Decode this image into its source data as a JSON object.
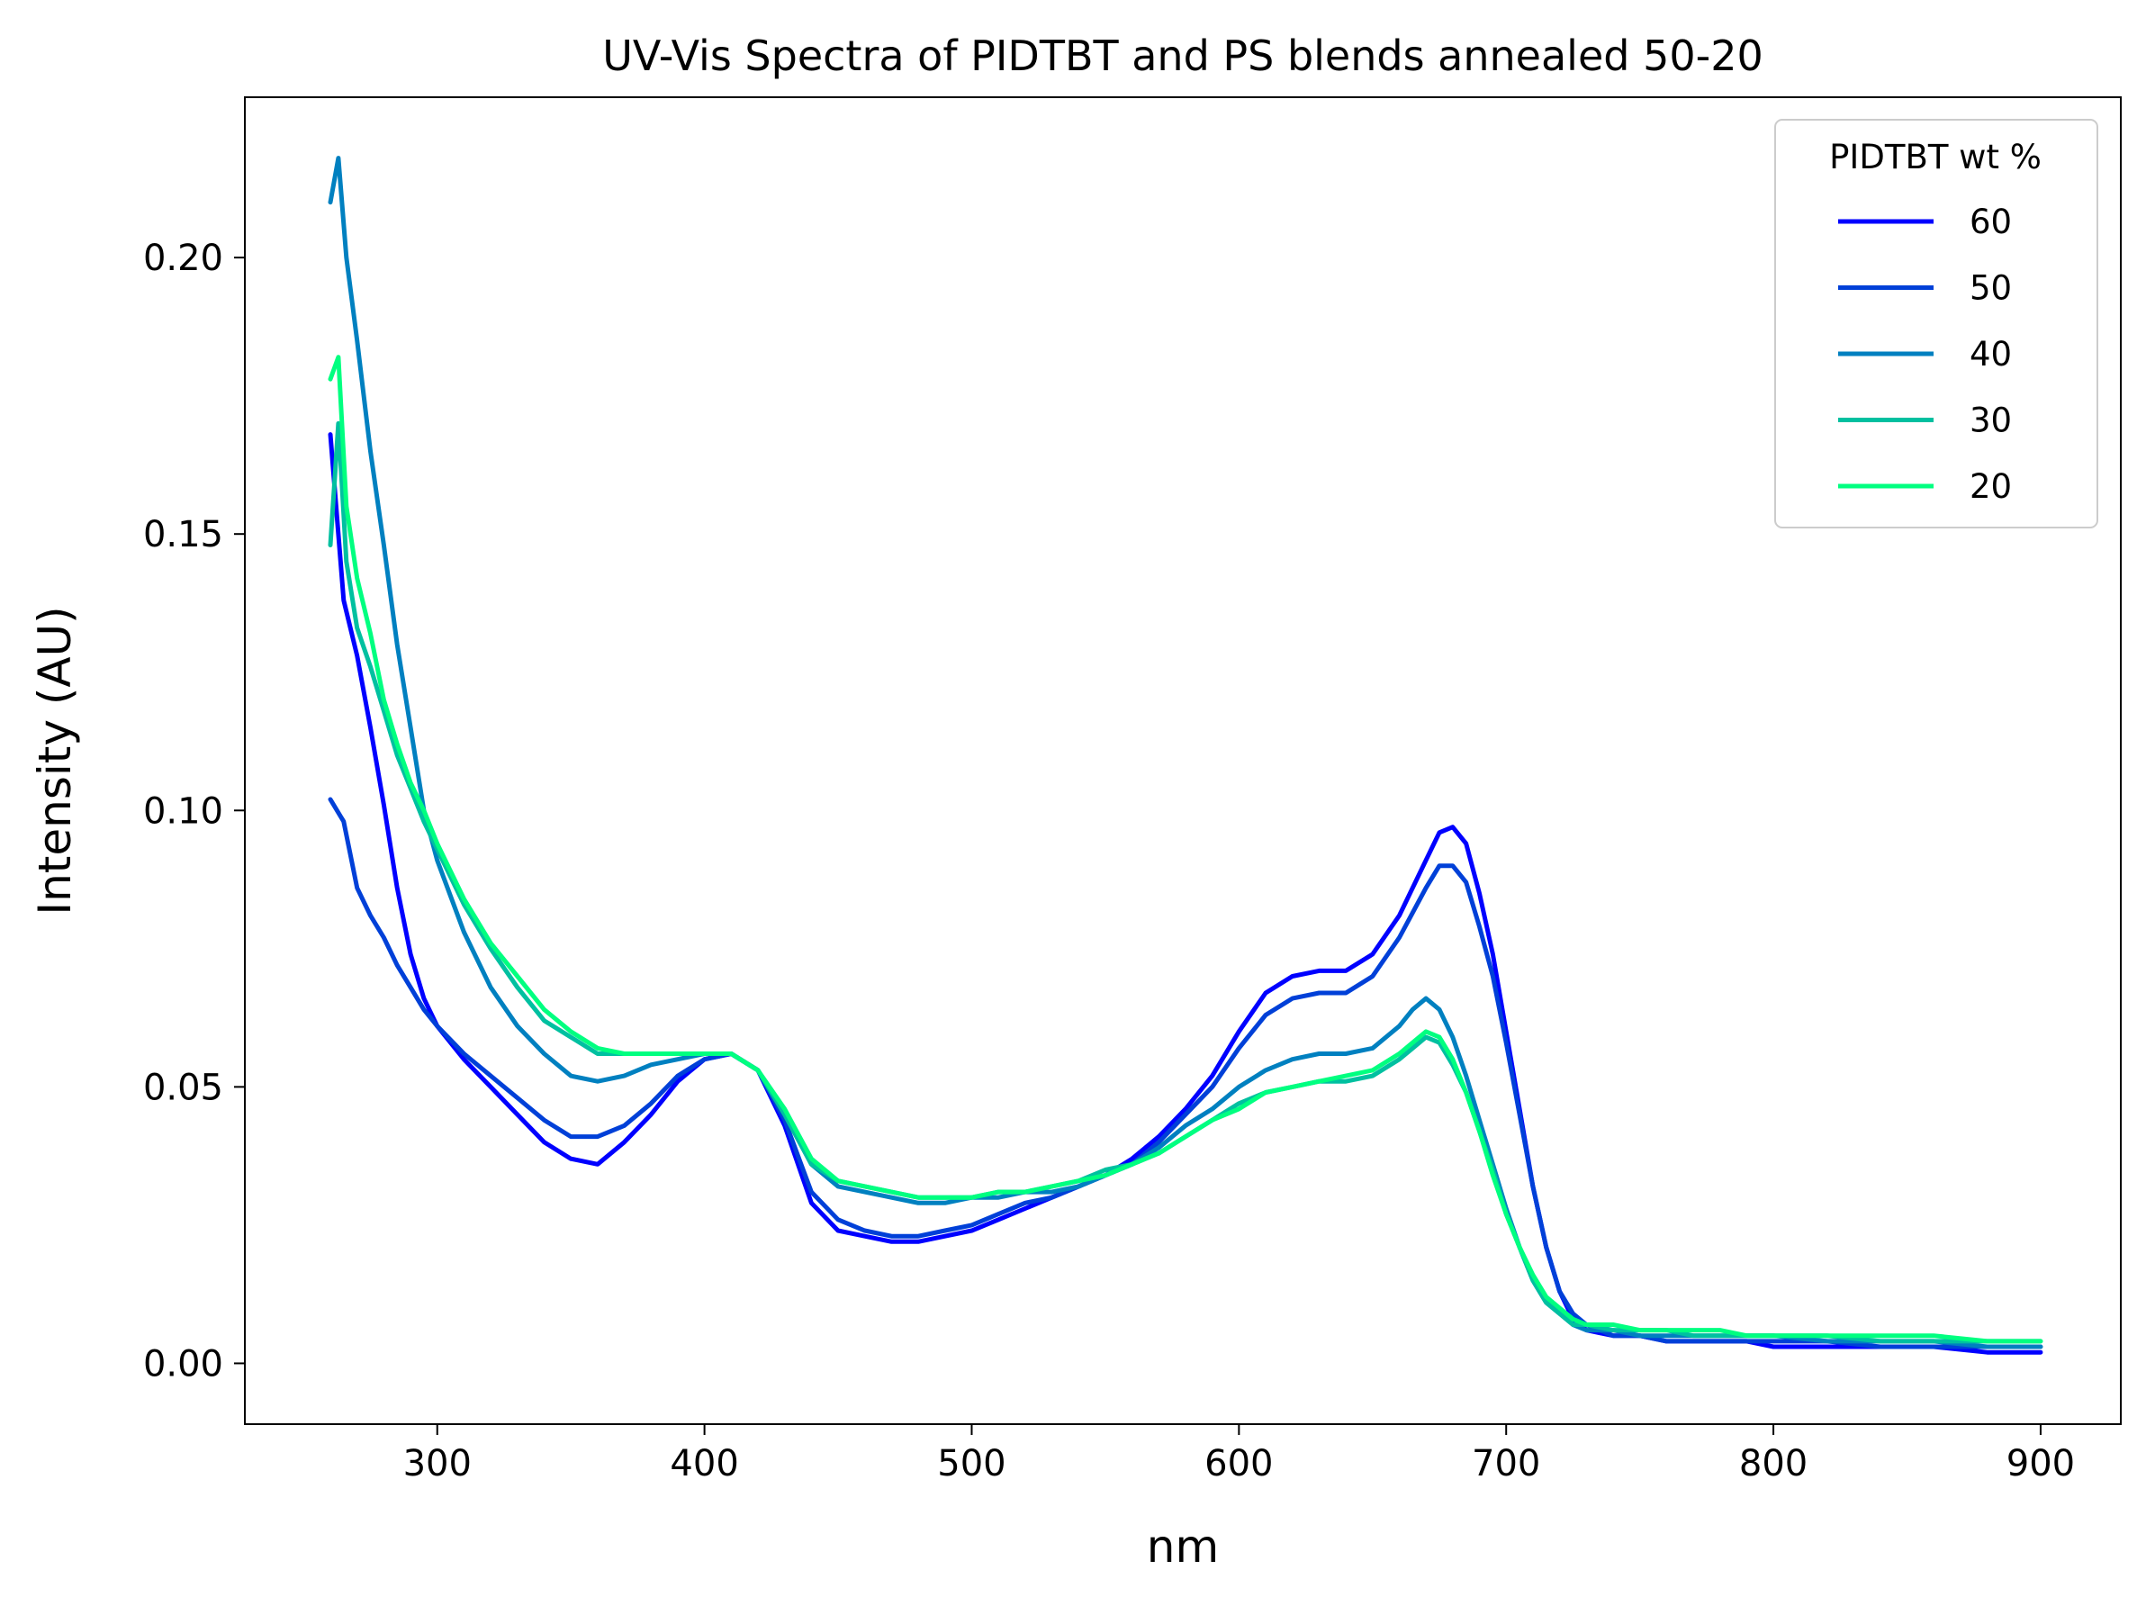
{
  "chart_data": {
    "type": "line",
    "title": "UV-Vis Spectra of PIDTBT and PS blends annealed 50-20",
    "xlabel": "nm",
    "ylabel": "Intensity (AU)",
    "xlim": [
      228,
      930
    ],
    "ylim": [
      -0.011,
      0.229
    ],
    "x_ticks": [
      300,
      400,
      500,
      600,
      700,
      800,
      900
    ],
    "y_ticks": [
      0.0,
      0.05,
      0.1,
      0.15,
      0.2
    ],
    "x_tick_labels": [
      "300",
      "400",
      "500",
      "600",
      "700",
      "800",
      "900"
    ],
    "y_tick_labels": [
      "0.00",
      "0.05",
      "0.10",
      "0.15",
      "0.20"
    ],
    "grid": false,
    "legend": {
      "title": "PIDTBT wt %",
      "position": "top-right"
    },
    "series": [
      {
        "name": "60",
        "color": "#0000ff",
        "x": [
          260,
          265,
          270,
          275,
          280,
          285,
          290,
          295,
          300,
          310,
          320,
          330,
          340,
          350,
          360,
          370,
          380,
          390,
          400,
          410,
          420,
          430,
          440,
          450,
          460,
          470,
          480,
          490,
          500,
          510,
          520,
          530,
          540,
          550,
          560,
          570,
          580,
          590,
          600,
          610,
          620,
          630,
          640,
          650,
          660,
          670,
          675,
          680,
          685,
          690,
          695,
          700,
          705,
          710,
          715,
          720,
          725,
          730,
          740,
          750,
          760,
          770,
          780,
          790,
          800,
          820,
          840,
          860,
          880,
          900
        ],
        "y": [
          0.168,
          0.138,
          0.128,
          0.115,
          0.101,
          0.086,
          0.074,
          0.066,
          0.061,
          0.055,
          0.05,
          0.045,
          0.04,
          0.037,
          0.036,
          0.04,
          0.045,
          0.051,
          0.055,
          0.056,
          0.053,
          0.043,
          0.029,
          0.024,
          0.023,
          0.022,
          0.022,
          0.023,
          0.024,
          0.026,
          0.028,
          0.03,
          0.032,
          0.034,
          0.037,
          0.041,
          0.046,
          0.052,
          0.06,
          0.067,
          0.07,
          0.071,
          0.071,
          0.074,
          0.081,
          0.091,
          0.096,
          0.097,
          0.094,
          0.085,
          0.074,
          0.06,
          0.046,
          0.032,
          0.021,
          0.013,
          0.008,
          0.006,
          0.005,
          0.005,
          0.004,
          0.004,
          0.004,
          0.004,
          0.003,
          0.003,
          0.003,
          0.003,
          0.002,
          0.002
        ]
      },
      {
        "name": "50",
        "color": "#0040d8",
        "x": [
          260,
          265,
          270,
          275,
          280,
          285,
          290,
          295,
          300,
          310,
          320,
          330,
          340,
          350,
          360,
          370,
          380,
          390,
          400,
          410,
          420,
          430,
          440,
          450,
          460,
          470,
          480,
          490,
          500,
          510,
          520,
          530,
          540,
          550,
          560,
          570,
          580,
          590,
          600,
          610,
          620,
          630,
          640,
          650,
          660,
          670,
          675,
          680,
          685,
          690,
          695,
          700,
          705,
          710,
          715,
          720,
          725,
          730,
          740,
          750,
          760,
          770,
          780,
          790,
          800,
          820,
          840,
          860,
          880,
          900
        ],
        "y": [
          0.102,
          0.098,
          0.086,
          0.081,
          0.077,
          0.072,
          0.068,
          0.064,
          0.061,
          0.056,
          0.052,
          0.048,
          0.044,
          0.041,
          0.041,
          0.043,
          0.047,
          0.052,
          0.055,
          0.056,
          0.053,
          0.044,
          0.031,
          0.026,
          0.024,
          0.023,
          0.023,
          0.024,
          0.025,
          0.027,
          0.029,
          0.03,
          0.032,
          0.034,
          0.036,
          0.04,
          0.045,
          0.05,
          0.057,
          0.063,
          0.066,
          0.067,
          0.067,
          0.07,
          0.077,
          0.086,
          0.09,
          0.09,
          0.087,
          0.079,
          0.07,
          0.058,
          0.045,
          0.032,
          0.021,
          0.013,
          0.009,
          0.007,
          0.005,
          0.005,
          0.004,
          0.004,
          0.004,
          0.004,
          0.004,
          0.004,
          0.003,
          0.003,
          0.003,
          0.003
        ]
      },
      {
        "name": "40",
        "color": "#0080c0",
        "x": [
          260,
          263,
          266,
          270,
          275,
          280,
          285,
          290,
          295,
          300,
          310,
          320,
          330,
          340,
          350,
          360,
          370,
          380,
          390,
          400,
          410,
          420,
          430,
          440,
          450,
          460,
          470,
          480,
          490,
          500,
          510,
          520,
          530,
          540,
          550,
          560,
          570,
          580,
          590,
          600,
          610,
          620,
          630,
          640,
          650,
          660,
          665,
          670,
          675,
          680,
          685,
          690,
          695,
          700,
          705,
          710,
          715,
          720,
          725,
          730,
          740,
          750,
          760,
          770,
          780,
          790,
          800,
          820,
          840,
          860,
          880,
          900
        ],
        "y": [
          0.21,
          0.218,
          0.2,
          0.185,
          0.165,
          0.148,
          0.13,
          0.115,
          0.1,
          0.091,
          0.078,
          0.068,
          0.061,
          0.056,
          0.052,
          0.051,
          0.052,
          0.054,
          0.055,
          0.056,
          0.056,
          0.053,
          0.045,
          0.036,
          0.032,
          0.031,
          0.03,
          0.029,
          0.029,
          0.03,
          0.03,
          0.031,
          0.031,
          0.032,
          0.034,
          0.036,
          0.039,
          0.043,
          0.046,
          0.05,
          0.053,
          0.055,
          0.056,
          0.056,
          0.057,
          0.061,
          0.064,
          0.066,
          0.064,
          0.059,
          0.052,
          0.044,
          0.036,
          0.028,
          0.021,
          0.015,
          0.011,
          0.009,
          0.007,
          0.006,
          0.006,
          0.005,
          0.005,
          0.005,
          0.005,
          0.005,
          0.005,
          0.004,
          0.004,
          0.004,
          0.003,
          0.003
        ]
      },
      {
        "name": "30",
        "color": "#00c0a0",
        "x": [
          260,
          263,
          266,
          270,
          275,
          280,
          285,
          290,
          295,
          300,
          310,
          320,
          330,
          340,
          350,
          360,
          370,
          380,
          390,
          400,
          410,
          420,
          430,
          440,
          450,
          460,
          470,
          480,
          490,
          500,
          510,
          520,
          530,
          540,
          550,
          560,
          570,
          580,
          590,
          600,
          610,
          620,
          630,
          640,
          650,
          660,
          665,
          670,
          675,
          680,
          685,
          690,
          695,
          700,
          705,
          710,
          715,
          720,
          725,
          730,
          740,
          750,
          760,
          770,
          780,
          790,
          800,
          820,
          840,
          860,
          880,
          900
        ],
        "y": [
          0.148,
          0.17,
          0.145,
          0.133,
          0.126,
          0.118,
          0.11,
          0.104,
          0.098,
          0.093,
          0.083,
          0.075,
          0.068,
          0.062,
          0.059,
          0.056,
          0.056,
          0.056,
          0.056,
          0.056,
          0.056,
          0.053,
          0.045,
          0.036,
          0.033,
          0.032,
          0.031,
          0.03,
          0.03,
          0.03,
          0.031,
          0.031,
          0.032,
          0.033,
          0.035,
          0.036,
          0.038,
          0.041,
          0.044,
          0.047,
          0.049,
          0.05,
          0.051,
          0.051,
          0.052,
          0.055,
          0.057,
          0.059,
          0.058,
          0.054,
          0.049,
          0.042,
          0.035,
          0.027,
          0.021,
          0.015,
          0.011,
          0.009,
          0.007,
          0.007,
          0.006,
          0.006,
          0.006,
          0.005,
          0.005,
          0.005,
          0.005,
          0.005,
          0.004,
          0.004,
          0.004,
          0.004
        ]
      },
      {
        "name": "20",
        "color": "#00ff80",
        "x": [
          260,
          263,
          266,
          270,
          275,
          280,
          285,
          290,
          295,
          300,
          310,
          320,
          330,
          340,
          350,
          360,
          370,
          380,
          390,
          400,
          410,
          420,
          430,
          440,
          450,
          460,
          470,
          480,
          490,
          500,
          510,
          520,
          530,
          540,
          550,
          560,
          570,
          580,
          590,
          600,
          610,
          620,
          630,
          640,
          650,
          660,
          665,
          670,
          675,
          680,
          685,
          690,
          695,
          700,
          705,
          710,
          715,
          720,
          725,
          730,
          740,
          750,
          760,
          770,
          780,
          790,
          800,
          820,
          840,
          860,
          880,
          900
        ],
        "y": [
          0.178,
          0.182,
          0.155,
          0.142,
          0.132,
          0.12,
          0.112,
          0.105,
          0.1,
          0.094,
          0.084,
          0.076,
          0.07,
          0.064,
          0.06,
          0.057,
          0.056,
          0.056,
          0.056,
          0.056,
          0.056,
          0.053,
          0.046,
          0.037,
          0.033,
          0.032,
          0.031,
          0.03,
          0.03,
          0.03,
          0.031,
          0.031,
          0.032,
          0.033,
          0.034,
          0.036,
          0.038,
          0.041,
          0.044,
          0.046,
          0.049,
          0.05,
          0.051,
          0.052,
          0.053,
          0.056,
          0.058,
          0.06,
          0.059,
          0.055,
          0.049,
          0.042,
          0.034,
          0.027,
          0.021,
          0.016,
          0.012,
          0.01,
          0.008,
          0.007,
          0.007,
          0.006,
          0.006,
          0.006,
          0.006,
          0.005,
          0.005,
          0.005,
          0.005,
          0.005,
          0.004,
          0.004
        ]
      }
    ]
  }
}
